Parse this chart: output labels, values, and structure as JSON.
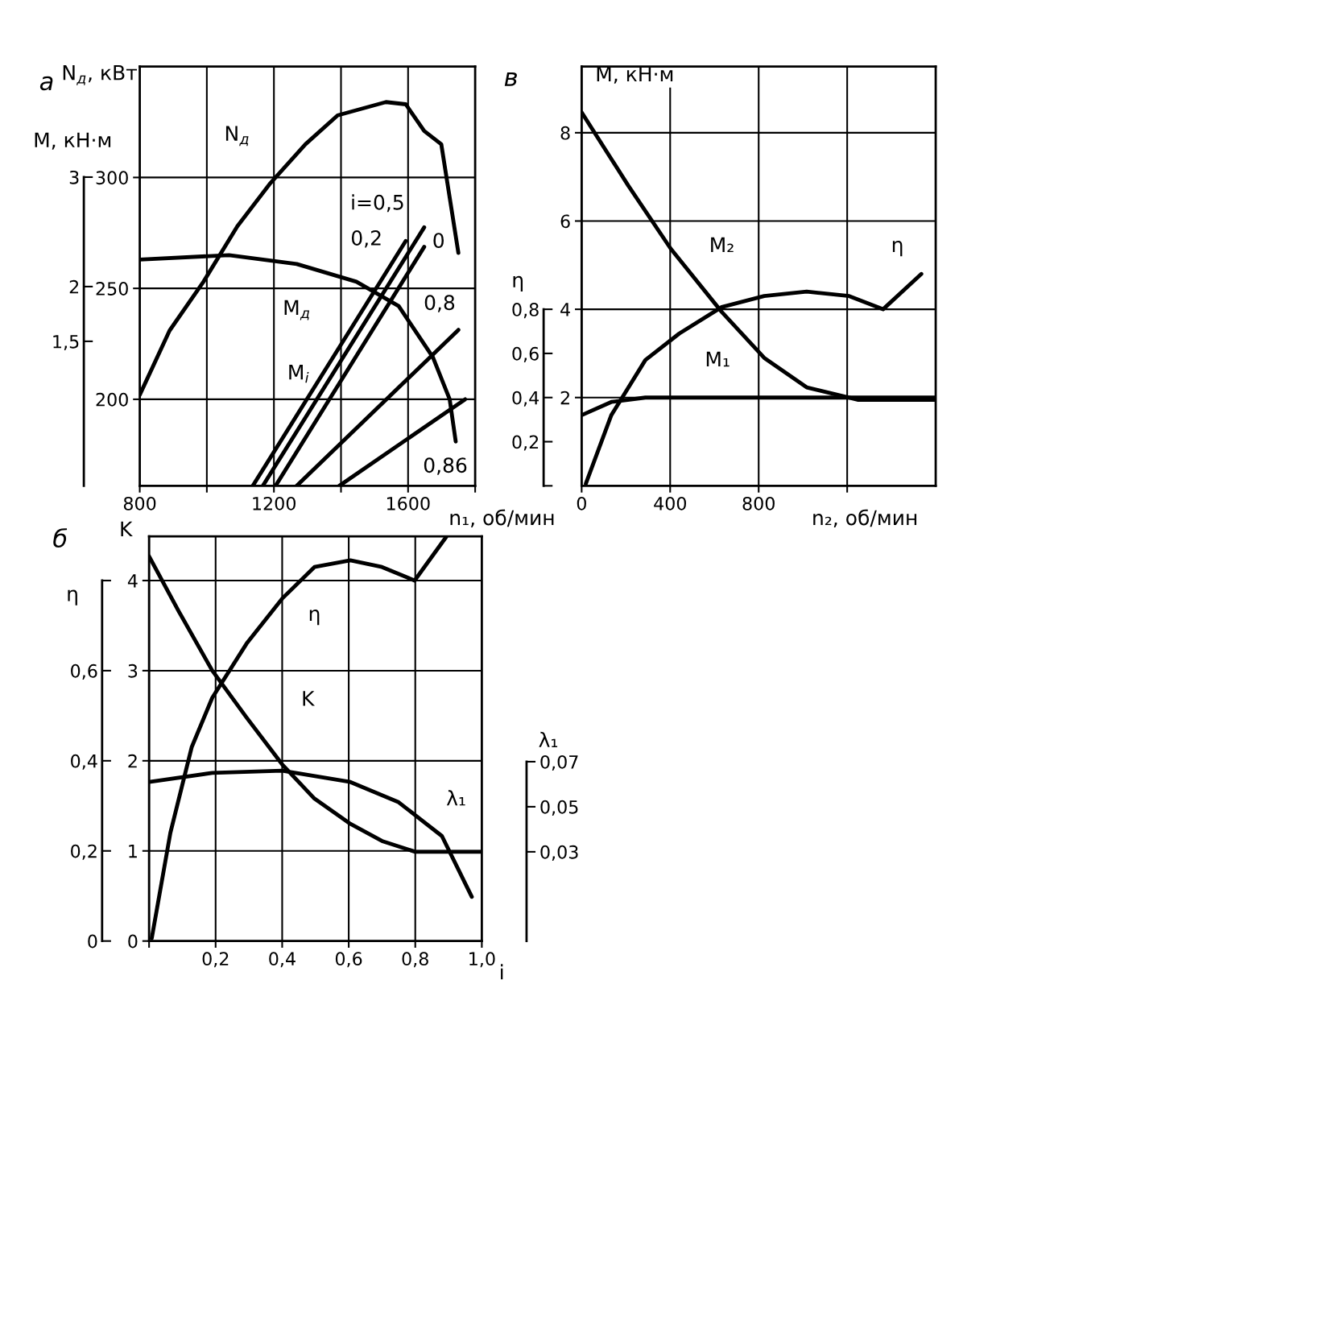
{
  "chart_data": [
    {
      "type": "line",
      "title": "а",
      "xlabel": "n₁, об/мин",
      "ylabel": "N$_{д}$, кВт",
      "y2label": "M, кН·м",
      "xlim": [
        800,
        1800
      ],
      "xticks": [
        800,
        {
          "value": 1000,
          "label": null
        },
        1200,
        {
          "value": 1400,
          "label": null
        },
        1600,
        {
          "value": 1800,
          "label": null
        }
      ],
      "ylim": [
        161,
        350
      ],
      "yticks": [
        200,
        250,
        300
      ],
      "y2lim": [
        0.18,
        4.01
      ],
      "y2ticks": [
        3,
        2,
        {
          "value": 1.5,
          "label": "1,5"
        }
      ],
      "grid": true,
      "series": [
        {
          "color": "#000000",
          "x": [
            800,
            889,
            990,
            1091,
            1187,
            1294,
            1390,
            1534,
            1593,
            1648,
            1699,
            1750
          ],
          "values": [
            202,
            231,
            253,
            278,
            297,
            315,
            328,
            334,
            333,
            321,
            315,
            266
          ]
        },
        {
          "color": "#000000",
          "x": [
            800,
            1066,
            1268,
            1446,
            1572,
            1674,
            1724,
            1742
          ],
          "values": [
            263,
            265,
            261,
            253,
            242,
            219,
            200,
            181
          ]
        },
        {
          "color": "#000000",
          "x": [
            1167,
            1648
          ],
          "values": [
            161,
            277.5
          ]
        },
        {
          "color": "#000000",
          "x": [
            1137,
            1593
          ],
          "values": [
            161,
            271.4
          ]
        },
        {
          "color": "#000000",
          "x": [
            1205,
            1648
          ],
          "values": [
            161,
            268.7
          ]
        },
        {
          "color": "#000000",
          "x": [
            1268,
            1750
          ],
          "values": [
            161,
            231.3
          ]
        },
        {
          "color": "#000000",
          "x": [
            1395,
            1770
          ],
          "values": [
            161,
            200
          ]
        }
      ],
      "annotations": [
        "N$_{д}$",
        "M$_{д}$",
        "M$_{i}$",
        "i=0,5",
        "0,2",
        "0",
        "0,8",
        "0,86"
      ]
    },
    {
      "type": "line",
      "title": "в",
      "xlabel": "n₂, об/мин",
      "ylabel": "M, кН·м",
      "y2label": "η",
      "xlim": [
        0,
        1600
      ],
      "xticks": [
        0,
        400,
        800,
        {
          "value": 1200,
          "label": null
        }
      ],
      "ylim": [
        0,
        9.5
      ],
      "yticks": [
        2,
        4,
        6,
        8
      ],
      "y2lim": [
        0,
        1.9
      ],
      "y2ticks": [
        {
          "value": 0,
          "label": null
        },
        {
          "value": 0.2,
          "label": "0,2"
        },
        {
          "value": 0.4,
          "label": "0,4"
        },
        {
          "value": 0.6,
          "label": "0,6"
        },
        {
          "value": 0.8,
          "label": "0,8"
        }
      ],
      "grid": true,
      "series": [
        {
          "color": "#000000",
          "x": [
            0,
            211,
            403,
            633,
            825,
            1017,
            1247,
            1600
          ],
          "values": [
            8.46,
            6.8,
            5.37,
            3.94,
            2.9,
            2.23,
            1.95,
            1.95
          ]
        },
        {
          "color": "#000000",
          "x": [
            0,
            134,
            288,
            1600
          ],
          "values": [
            1.6,
            1.9,
            2.0,
            2.0
          ]
        },
        {
          "color": "#000000",
          "axis": "y2",
          "x": [
            19,
            134,
            288,
            441,
            633,
            825,
            1017,
            1209,
            1362,
            1535
          ],
          "values": [
            0.01,
            0.32,
            0.57,
            0.69,
            0.81,
            0.86,
            0.88,
            0.86,
            0.8,
            0.96
          ]
        }
      ],
      "annotations": [
        "M₂",
        "η",
        "M₁"
      ]
    },
    {
      "type": "line",
      "title": "б",
      "xlabel": "i",
      "ylabel": "K",
      "y2label": "η",
      "y3label": "λ₁",
      "xlim": [
        0,
        1
      ],
      "xticks": [
        {
          "value": 0,
          "label": null
        },
        {
          "value": 0.2,
          "label": "0,2"
        },
        {
          "value": 0.4,
          "label": "0,4"
        },
        {
          "value": 0.6,
          "label": "0,6"
        },
        {
          "value": 0.8,
          "label": "0,8"
        },
        {
          "value": 1.0,
          "label": "1,0"
        }
      ],
      "ylim": [
        0,
        4.49
      ],
      "yticks": [
        0,
        1,
        2,
        3,
        4
      ],
      "y2lim": [
        0,
        0.898
      ],
      "y2ticks": [
        0,
        {
          "value": 0.2,
          "label": "0,2"
        },
        {
          "value": 0.4,
          "label": "0,4"
        },
        {
          "value": 0.6,
          "label": "0,6"
        },
        {
          "value": 0.8,
          "label": null
        }
      ],
      "y3lim": [
        -0.0096,
        0.17
      ],
      "y3ticks": [
        {
          "value": 0.03,
          "label": "0,03"
        },
        {
          "value": 0.05,
          "label": "0,05"
        },
        {
          "value": 0.07,
          "label": "0,07"
        }
      ],
      "grid": true,
      "series": [
        {
          "color": "#000000",
          "x": [
            0,
            0.089,
            0.19,
            0.293,
            0.4,
            0.497,
            0.605,
            0.7,
            0.8,
            1.0
          ],
          "values": [
            4.27,
            3.66,
            3.0,
            2.48,
            1.96,
            1.58,
            1.3,
            1.11,
            0.99,
            0.99
          ]
        },
        {
          "color": "#000000",
          "axis": "y2",
          "x": [
            0.008,
            0.064,
            0.128,
            0.19,
            0.293,
            0.4,
            0.497,
            0.605,
            0.7,
            0.798,
            0.893
          ],
          "values": [
            0.006,
            0.24,
            0.43,
            0.54,
            0.66,
            0.76,
            0.83,
            0.845,
            0.83,
            0.8,
            0.897
          ]
        },
        {
          "color": "#000000",
          "axis": "y3",
          "x": [
            0,
            0.19,
            0.4,
            0.605,
            0.75,
            0.88,
            0.97
          ],
          "values": [
            0.061,
            0.065,
            0.066,
            0.061,
            0.052,
            0.037,
            0.01
          ]
        }
      ],
      "annotations": [
        "η",
        "K",
        "λ₁"
      ]
    }
  ]
}
